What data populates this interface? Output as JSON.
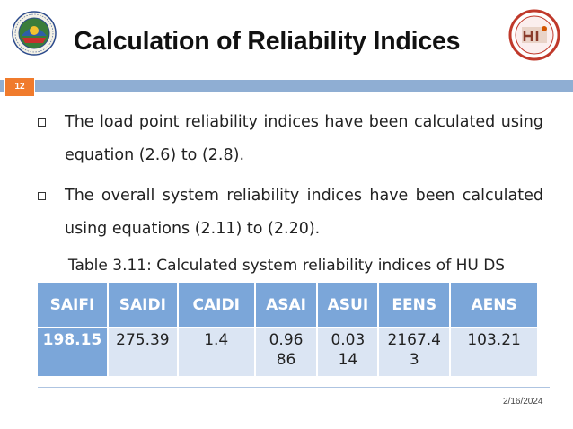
{
  "slide": {
    "number": "12",
    "title": "Calculation of Reliability Indices",
    "date": "2/16/2024"
  },
  "bullets": [
    {
      "text": "The load point reliability indices have been calculated using equation (2.6) to (2.8)."
    },
    {
      "text": "The overall system reliability indices have been calculated using equations (2.11) to (2.20)."
    }
  ],
  "table": {
    "caption": "Table 3.11: Calculated system reliability indices of HU DS",
    "headers": [
      "SAIFI",
      "SAIDI",
      "CAIDI",
      "ASAI",
      "ASUI",
      "EENS",
      "AENS"
    ],
    "row": [
      "198.15",
      "275.39",
      "1.4",
      "0.9686",
      "0.0314",
      "2167.43",
      "103.21"
    ]
  },
  "colors": {
    "accent_blue": "#7ba6d9",
    "band_blue": "#8faed3",
    "cell_fill": "#dbe5f3",
    "slide_number_orange": "#f07b2c"
  },
  "logos": {
    "left": "university-seal-logo",
    "right": "institute-logo"
  }
}
